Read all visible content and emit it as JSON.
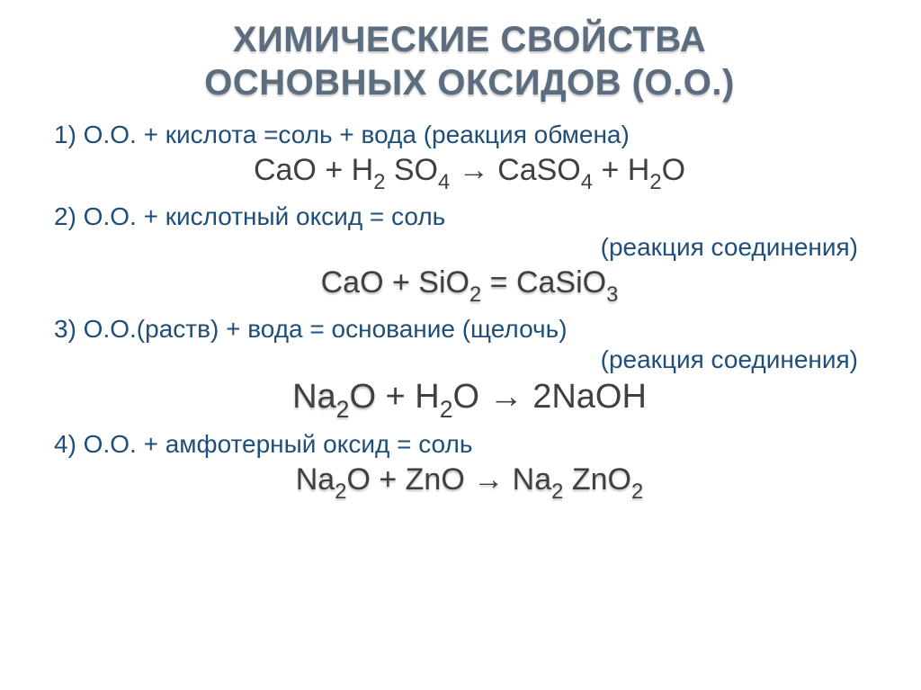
{
  "colors": {
    "title": "#5b6d7f",
    "rule_text": "#1f4e79",
    "equation_text": "#404040"
  },
  "fontsize": {
    "title": 40,
    "rule": 28,
    "equation": 34,
    "equation_large": 38
  },
  "title_line1": "ХИМИЧЕСКИЕ СВОЙСТВА",
  "title_line2": "ОСНОВНЫХ ОКСИДОВ (О.О.)",
  "rule1": "1) О.О. + кислота =соль + вода (реакция обмена)",
  "eq1_pre": "CaO + H",
  "eq1_sub1": "2",
  "eq1_mid1": " SO",
  "eq1_sub2": "4",
  "eq1_mid2": " → CaSO",
  "eq1_sub3": "4",
  "eq1_mid3": " + H",
  "eq1_sub4": "2",
  "eq1_end": "O",
  "rule2": "2) О.О. + кислотный оксид = соль",
  "note2": "(реакция соединения)",
  "eq2_pre": "CaO + SiO",
  "eq2_sub1": "2",
  "eq2_mid1": " = CaSiO",
  "eq2_sub2": "3",
  "rule3": "3) О.О.(раств) + вода = основание (щелочь)",
  "note3": "(реакция соединения)",
  "eq3_na": "Na",
  "eq3_sub1": "2",
  "eq3_o": "O",
  "eq3_mid1": " + H",
  "eq3_sub2": "2",
  "eq3_end": "O → 2NaOH",
  "rule4": "4) О.О. + амфотерный оксид = соль",
  "eq4_pre": "Na",
  "eq4_sub1": "2",
  "eq4_mid1": "O + ZnO → Na",
  "eq4_sub2": "2",
  "eq4_mid2": " ZnO",
  "eq4_sub3": "2"
}
